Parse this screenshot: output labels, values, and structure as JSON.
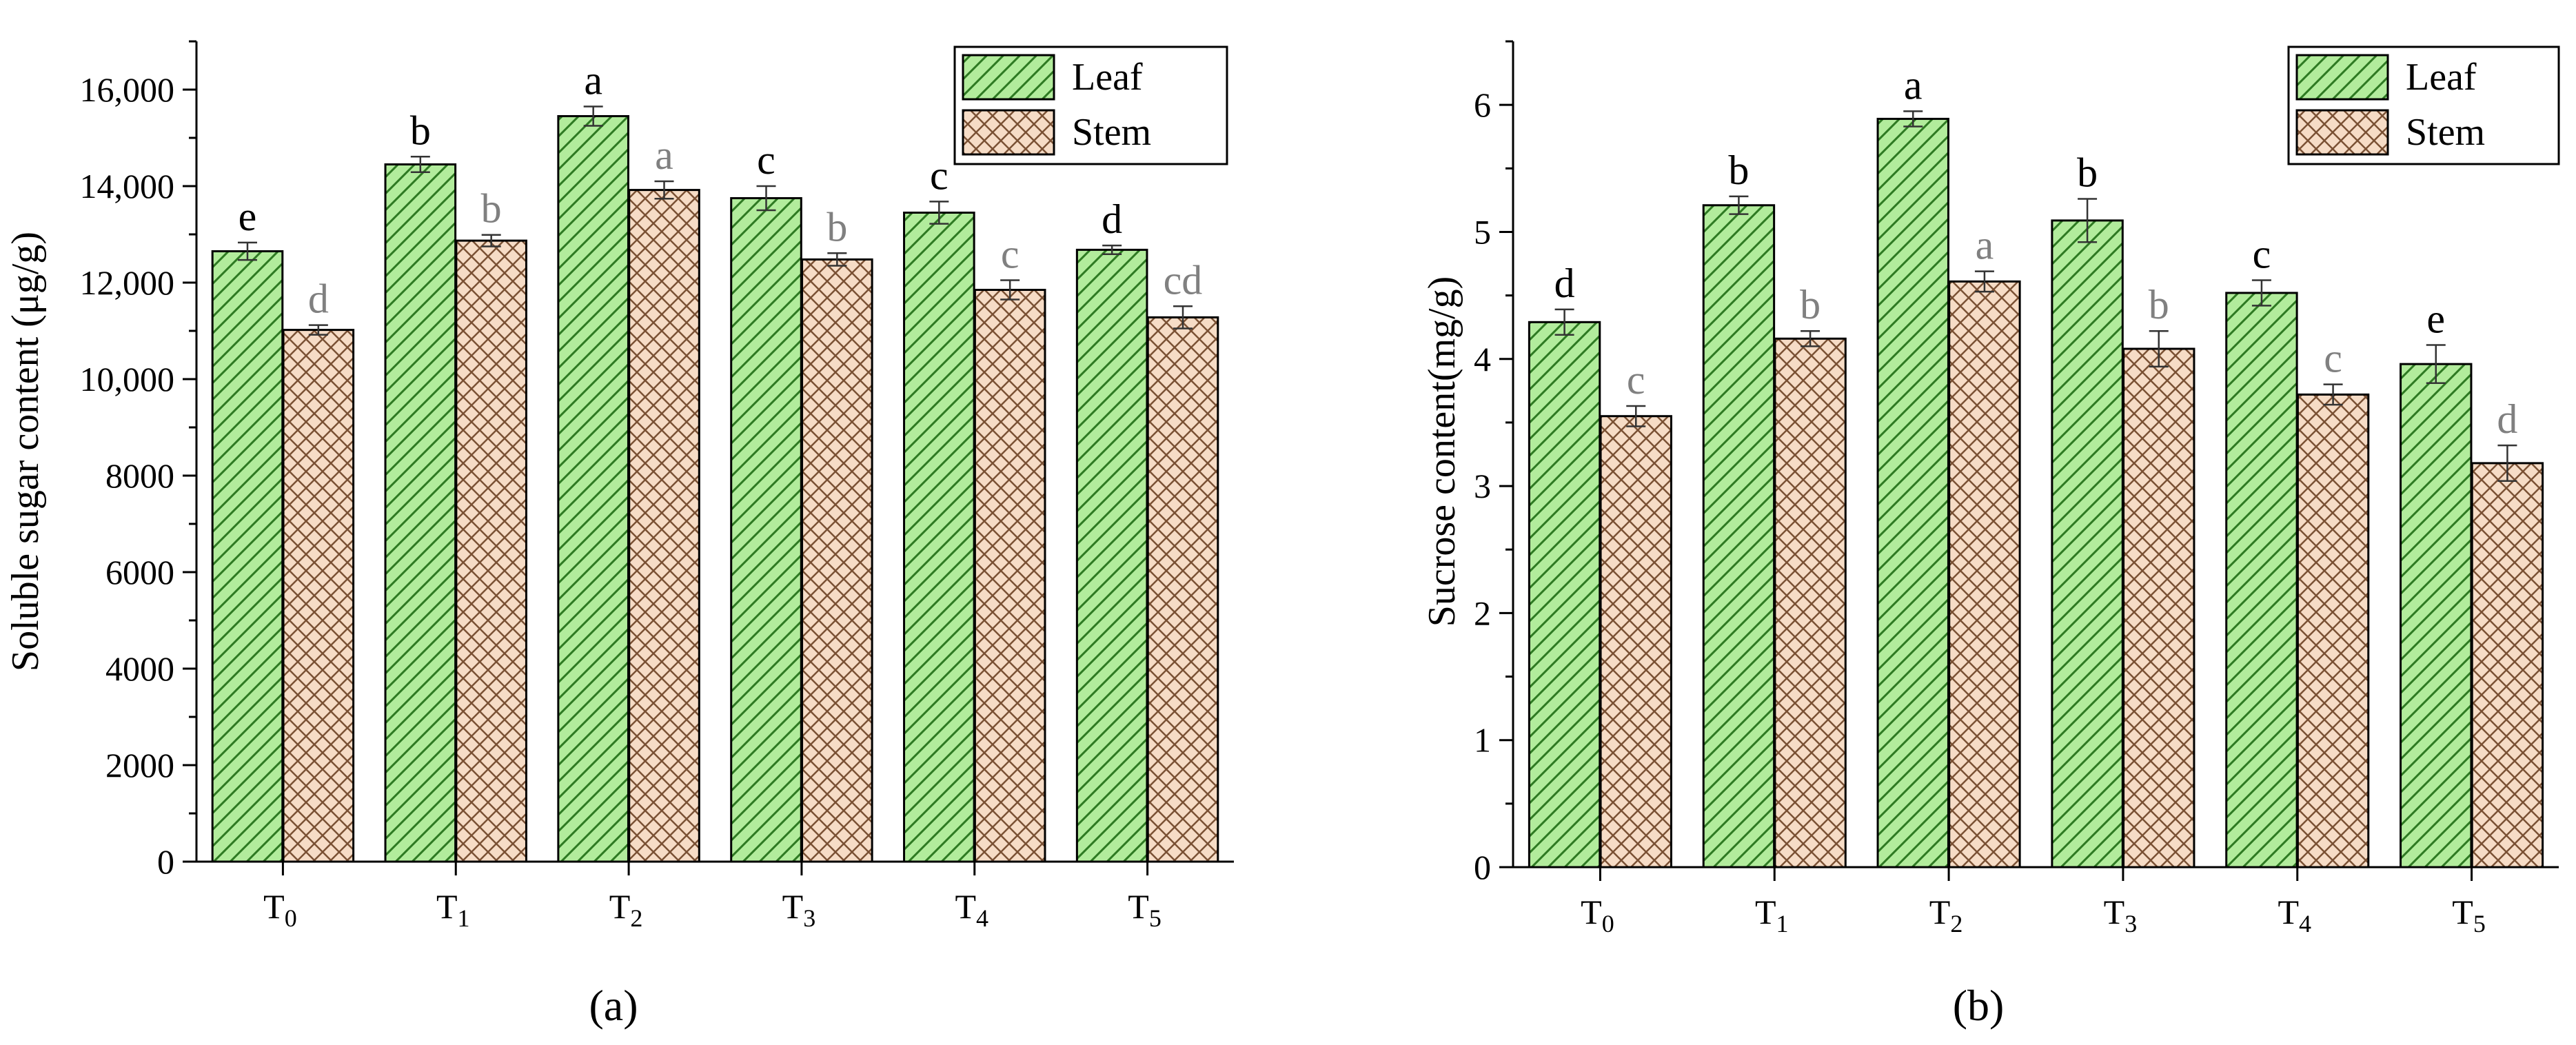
{
  "chart_data": [
    {
      "type": "bar",
      "panel_label": "(a)",
      "ylabel": "Soluble sugar content (μg/g)",
      "xlabel": "",
      "categories": [
        {
          "base": "T",
          "sub": "0"
        },
        {
          "base": "T",
          "sub": "1"
        },
        {
          "base": "T",
          "sub": "2"
        },
        {
          "base": "T",
          "sub": "3"
        },
        {
          "base": "T",
          "sub": "4"
        },
        {
          "base": "T",
          "sub": "5"
        }
      ],
      "ylim": [
        0,
        17000
      ],
      "yticks": [
        0,
        2000,
        4000,
        6000,
        8000,
        10000,
        12000,
        14000,
        16000
      ],
      "ytick_labels": [
        "0",
        "2000",
        "4000",
        "6000",
        "8000",
        "10,000",
        "12,000",
        "14,000",
        "16,000"
      ],
      "legend_position": "top-right",
      "series": [
        {
          "name": "Leaf",
          "pattern": "diagonal",
          "values": [
            12650,
            14450,
            15450,
            13750,
            13450,
            12680
          ],
          "errors": [
            180,
            160,
            200,
            250,
            230,
            90
          ],
          "significance": [
            "e",
            "b",
            "a",
            "c",
            "c",
            "d"
          ]
        },
        {
          "name": "Stem",
          "pattern": "crosshatch",
          "values": [
            11020,
            12870,
            13920,
            12480,
            11850,
            11280
          ],
          "errors": [
            100,
            120,
            180,
            130,
            200,
            230
          ],
          "significance": [
            "d",
            "b",
            "a",
            "b",
            "c",
            "cd"
          ]
        }
      ]
    },
    {
      "type": "bar",
      "panel_label": "(b)",
      "ylabel": "Sucrose content(mg/g)",
      "xlabel": "",
      "categories": [
        {
          "base": "T",
          "sub": "0"
        },
        {
          "base": "T",
          "sub": "1"
        },
        {
          "base": "T",
          "sub": "2"
        },
        {
          "base": "T",
          "sub": "3"
        },
        {
          "base": "T",
          "sub": "4"
        },
        {
          "base": "T",
          "sub": "5"
        }
      ],
      "ylim": [
        0,
        6.5
      ],
      "yticks": [
        0,
        1,
        2,
        3,
        4,
        5,
        6
      ],
      "ytick_labels": [
        "0",
        "1",
        "2",
        "3",
        "4",
        "5",
        "6"
      ],
      "legend_position": "top-right",
      "series": [
        {
          "name": "Leaf",
          "pattern": "diagonal",
          "values": [
            4.29,
            5.21,
            5.89,
            5.09,
            4.52,
            3.96
          ],
          "errors": [
            0.1,
            0.07,
            0.06,
            0.17,
            0.1,
            0.15
          ],
          "significance": [
            "d",
            "b",
            "a",
            "b",
            "c",
            "e"
          ]
        },
        {
          "name": "Stem",
          "pattern": "crosshatch",
          "values": [
            3.55,
            4.16,
            4.61,
            4.08,
            3.72,
            3.18
          ],
          "errors": [
            0.08,
            0.06,
            0.08,
            0.14,
            0.08,
            0.14
          ],
          "significance": [
            "c",
            "b",
            "a",
            "b",
            "c",
            "d"
          ]
        }
      ]
    }
  ],
  "colors": {
    "leaf_fill": "#b2ec9c",
    "leaf_hatch": "#2e7a22",
    "stem_fill": "#f6dcc6",
    "stem_hatch": "#7a5134",
    "axis": "#000000",
    "leaf_sig": "#000000",
    "stem_sig": "#808080"
  }
}
